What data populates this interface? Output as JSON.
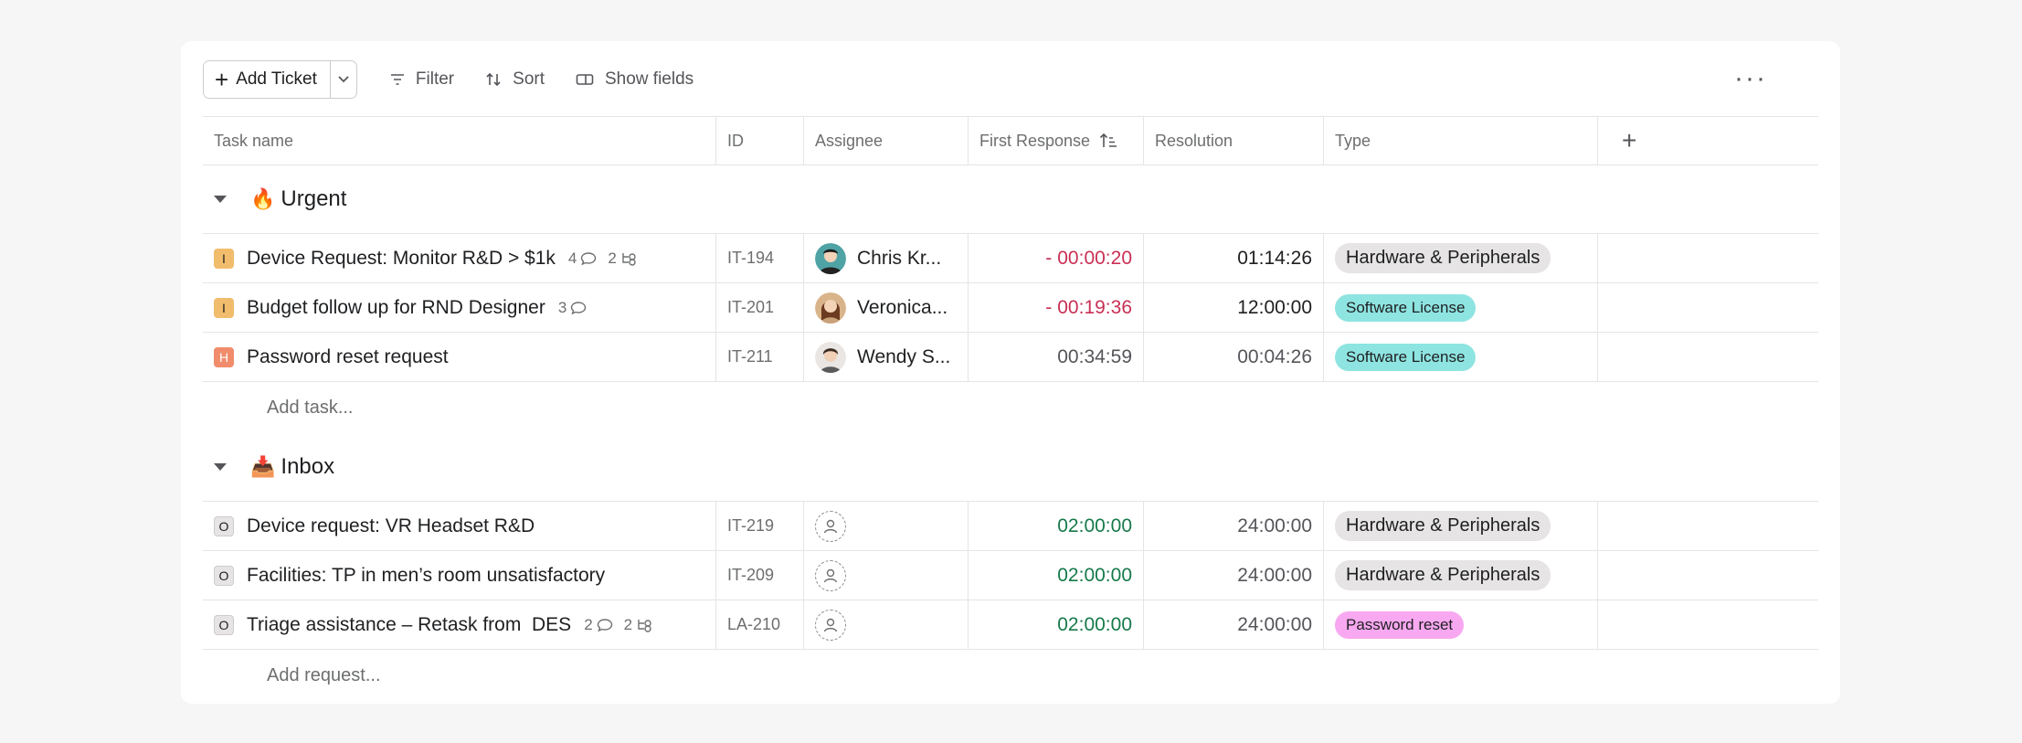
{
  "toolbar": {
    "add_ticket": "Add Ticket",
    "filter": "Filter",
    "sort": "Sort",
    "show_fields": "Show fields",
    "more": "···"
  },
  "columns": {
    "task_name": "Task name",
    "id": "ID",
    "assignee": "Assignee",
    "first_response": "First Response",
    "resolution": "Resolution",
    "type": "Type",
    "add": "+"
  },
  "sections": [
    {
      "emoji": "🔥",
      "title": "Urgent",
      "add_label": "Add task...",
      "rows": [
        {
          "priority": "I",
          "name": "Device Request: Monitor R&D > $1k",
          "comments": "4",
          "subtasks": "2",
          "id": "IT-194",
          "assignee": "Chris Kr...",
          "first_response_sign": "-",
          "first_response": "00:00:20",
          "resolution": "01:14:26",
          "type": "Hardware & Peripherals"
        },
        {
          "priority": "I",
          "name": "Budget follow up for RND Designer",
          "comments": "3",
          "subtasks": "",
          "id": "IT-201",
          "assignee": "Veronica...",
          "first_response_sign": "-",
          "first_response": "00:19:36",
          "resolution": "12:00:00",
          "type": "Software License"
        },
        {
          "priority": "H",
          "name": "Password reset request",
          "comments": "",
          "subtasks": "",
          "id": "IT-211",
          "assignee": "Wendy S...",
          "first_response_sign": "",
          "first_response": "00:34:59",
          "resolution": "00:04:26",
          "type": "Software License"
        }
      ]
    },
    {
      "emoji": "📥",
      "title": "Inbox",
      "add_label": "Add request...",
      "rows": [
        {
          "priority": "O",
          "name": "Device request: VR Headset R&D",
          "comments": "",
          "subtasks": "",
          "id": "IT-219",
          "assignee": "",
          "first_response_sign": "",
          "first_response": "02:00:00",
          "resolution": "24:00:00",
          "type": "Hardware & Peripherals"
        },
        {
          "priority": "O",
          "name": "Facilities: TP in men’s room unsatisfactory",
          "comments": "",
          "subtasks": "",
          "id": "IT-209",
          "assignee": "",
          "first_response_sign": "",
          "first_response": "02:00:00",
          "resolution": "24:00:00",
          "type": "Hardware & Peripherals"
        },
        {
          "priority": "O",
          "name": "Triage assistance – Retask from  DES",
          "comments": "2",
          "subtasks": "2",
          "id": "LA-210",
          "assignee": "",
          "first_response_sign": "",
          "first_response": "02:00:00",
          "resolution": "24:00:00",
          "type": "Password reset"
        }
      ]
    }
  ],
  "colors": {
    "negative": "#c92f54",
    "on_track": "#167a4a",
    "priority_i": "#f1bd6c",
    "priority_h": "#f08c6b",
    "type_hardware": "#e6e4e4",
    "type_software": "#8ee4e1",
    "type_password": "#f8a8f0"
  }
}
